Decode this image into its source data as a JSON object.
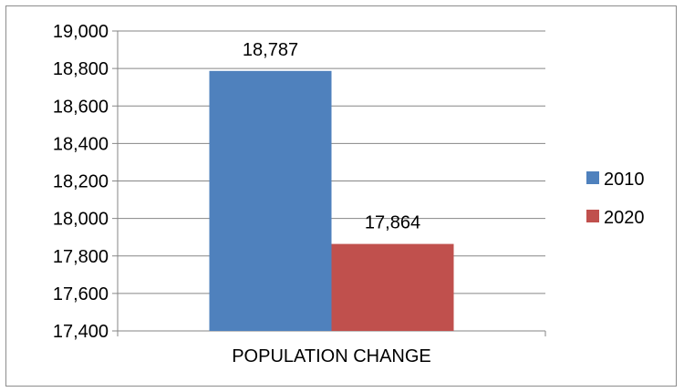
{
  "chart_data": {
    "type": "bar",
    "categories": [
      "POPULATION CHANGE"
    ],
    "series": [
      {
        "name": "2010",
        "values": [
          18787
        ],
        "color": "#4f81bd",
        "label": "18,787"
      },
      {
        "name": "2020",
        "values": [
          17864
        ],
        "color": "#c0504d",
        "label": "17,864"
      }
    ],
    "ylim": [
      17400,
      19000
    ],
    "y_ticks": [
      17400,
      17600,
      17800,
      18000,
      18200,
      18400,
      18600,
      18800,
      19000
    ],
    "y_tick_labels": [
      "17,400",
      "17,600",
      "17,800",
      "18,000",
      "18,200",
      "18,400",
      "18,600",
      "18,800",
      "19,000"
    ],
    "grid": true,
    "legend_position": "right",
    "title": "",
    "xlabel": "",
    "ylabel": ""
  }
}
